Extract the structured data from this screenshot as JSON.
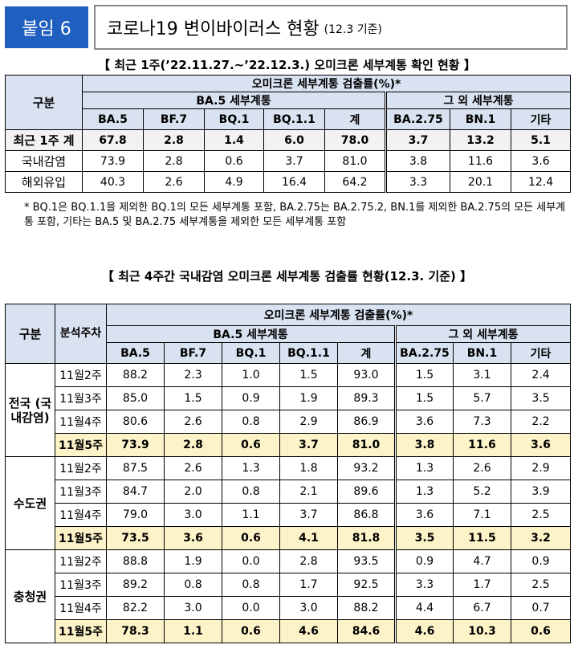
{
  "header": {
    "tag": "붙임 6",
    "title": "코로나19 변이바이러스 현황",
    "subtitle": "(12.3 기준)"
  },
  "table1": {
    "caption": "【 최근 1주(’22.11.27.~’22.12.3.) 오미크론 세부계통 확인 현황 】",
    "col_group": "구분",
    "rate_header": "오미크론 세부계통 검출률(%)*",
    "ba5_group": "BA.5 세부계통",
    "other_group": "그 외 세부계통",
    "columns": [
      "BA.5",
      "BF.7",
      "BQ.1",
      "BQ.1.1",
      "계",
      "BA.2.75",
      "BN.1",
      "기타"
    ],
    "rows": [
      {
        "label": "최근 1주 계",
        "values": [
          "67.8",
          "2.8",
          "1.4",
          "6.0",
          "78.0",
          "3.7",
          "13.2",
          "5.1"
        ]
      },
      {
        "label": "국내감염",
        "values": [
          "73.9",
          "2.8",
          "0.6",
          "3.7",
          "81.0",
          "3.8",
          "11.6",
          "3.6"
        ]
      },
      {
        "label": "해외유입",
        "values": [
          "40.3",
          "2.6",
          "4.9",
          "16.4",
          "64.2",
          "3.3",
          "20.1",
          "12.4"
        ]
      }
    ],
    "note": "* BQ.1은 BQ.1.1을 제외한 BQ.1의 모든 세부계통 포함, BA.2.75는 BA.2.75.2, BN.1를 제외한 BA.2.75의 모든 세부계통 포함, 기타는 BA.5 및 BA.2.75 세부계통을 제외한 모든 세부계통 포함"
  },
  "table2": {
    "caption": "【 최근 4주간 국내감염 오미크론 세부계통 검출률 현황(12.3. 기준) 】",
    "col_group": "구분",
    "col_week": "분석주차",
    "rate_header": "오미크론 세부계통 검출률(%)*",
    "ba5_group": "BA.5 세부계통",
    "other_group": "그 외 세부계통",
    "columns": [
      "BA.5",
      "BF.7",
      "BQ.1",
      "BQ.1.1",
      "계",
      "BA.2.75",
      "BN.1",
      "기타"
    ],
    "regions": [
      {
        "name": "전국 (국내감염)",
        "rows": [
          {
            "week": "11월2주",
            "values": [
              "88.2",
              "2.3",
              "1.0",
              "1.5",
              "93.0",
              "1.5",
              "3.1",
              "2.4"
            ]
          },
          {
            "week": "11월3주",
            "values": [
              "85.0",
              "1.5",
              "0.9",
              "1.9",
              "89.3",
              "1.5",
              "5.7",
              "3.5"
            ]
          },
          {
            "week": "11월4주",
            "values": [
              "80.6",
              "2.6",
              "0.8",
              "2.9",
              "86.9",
              "3.6",
              "7.3",
              "2.2"
            ]
          },
          {
            "week": "11월5주",
            "values": [
              "73.9",
              "2.8",
              "0.6",
              "3.7",
              "81.0",
              "3.8",
              "11.6",
              "3.6"
            ]
          }
        ]
      },
      {
        "name": "수도권",
        "rows": [
          {
            "week": "11월2주",
            "values": [
              "87.5",
              "2.6",
              "1.3",
              "1.8",
              "93.2",
              "1.3",
              "2.6",
              "2.9"
            ]
          },
          {
            "week": "11월3주",
            "values": [
              "84.7",
              "2.0",
              "0.8",
              "2.1",
              "89.6",
              "1.3",
              "5.2",
              "3.9"
            ]
          },
          {
            "week": "11월4주",
            "values": [
              "79.0",
              "3.0",
              "1.1",
              "3.7",
              "86.8",
              "3.6",
              "7.1",
              "2.5"
            ]
          },
          {
            "week": "11월5주",
            "values": [
              "73.5",
              "3.6",
              "0.6",
              "4.1",
              "81.8",
              "3.5",
              "11.5",
              "3.2"
            ]
          }
        ]
      },
      {
        "name": "충청권",
        "rows": [
          {
            "week": "11월2주",
            "values": [
              "88.8",
              "1.9",
              "0.0",
              "2.8",
              "93.5",
              "0.9",
              "4.7",
              "0.9"
            ]
          },
          {
            "week": "11월3주",
            "values": [
              "89.2",
              "0.8",
              "0.8",
              "1.7",
              "92.5",
              "3.3",
              "1.7",
              "2.5"
            ]
          },
          {
            "week": "11월4주",
            "values": [
              "82.2",
              "3.0",
              "0.0",
              "3.0",
              "88.2",
              "4.4",
              "6.7",
              "0.7"
            ]
          },
          {
            "week": "11월5주",
            "values": [
              "78.3",
              "1.1",
              "0.6",
              "4.6",
              "84.6",
              "4.6",
              "10.3",
              "0.6"
            ]
          }
        ]
      }
    ]
  },
  "colors": {
    "tag_bg": "#1f5fc0",
    "header_bg": "#d9e2f0",
    "highlight_bg": "#fdf3c8"
  }
}
